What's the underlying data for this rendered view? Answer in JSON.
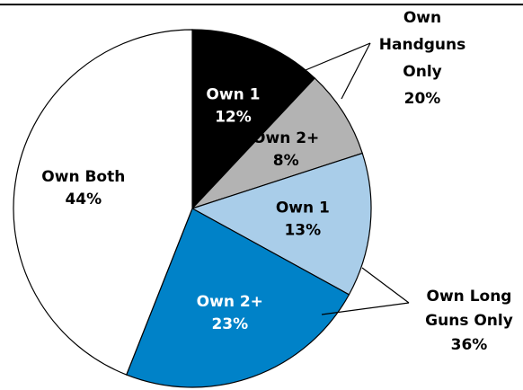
{
  "chart_data": {
    "type": "pie",
    "categories": [
      "Own 1",
      "Own 2+",
      "Own 1",
      "Own 2+",
      "Own Both"
    ],
    "values": [
      12,
      8,
      13,
      23,
      44
    ],
    "value_labels": [
      "12%",
      "8%",
      "13%",
      "23%",
      "44%"
    ],
    "colors": [
      "#000000",
      "#b3b3b3",
      "#a9cde9",
      "#0082c8",
      "#ffffff"
    ],
    "groups": [
      {
        "lines": [
          "Own",
          "Handguns",
          "Only"
        ],
        "value": 20,
        "value_label": "20%"
      },
      {
        "lines": [
          "Own Long",
          "Guns Only"
        ],
        "value": 36,
        "value_label": "36%"
      }
    ]
  }
}
